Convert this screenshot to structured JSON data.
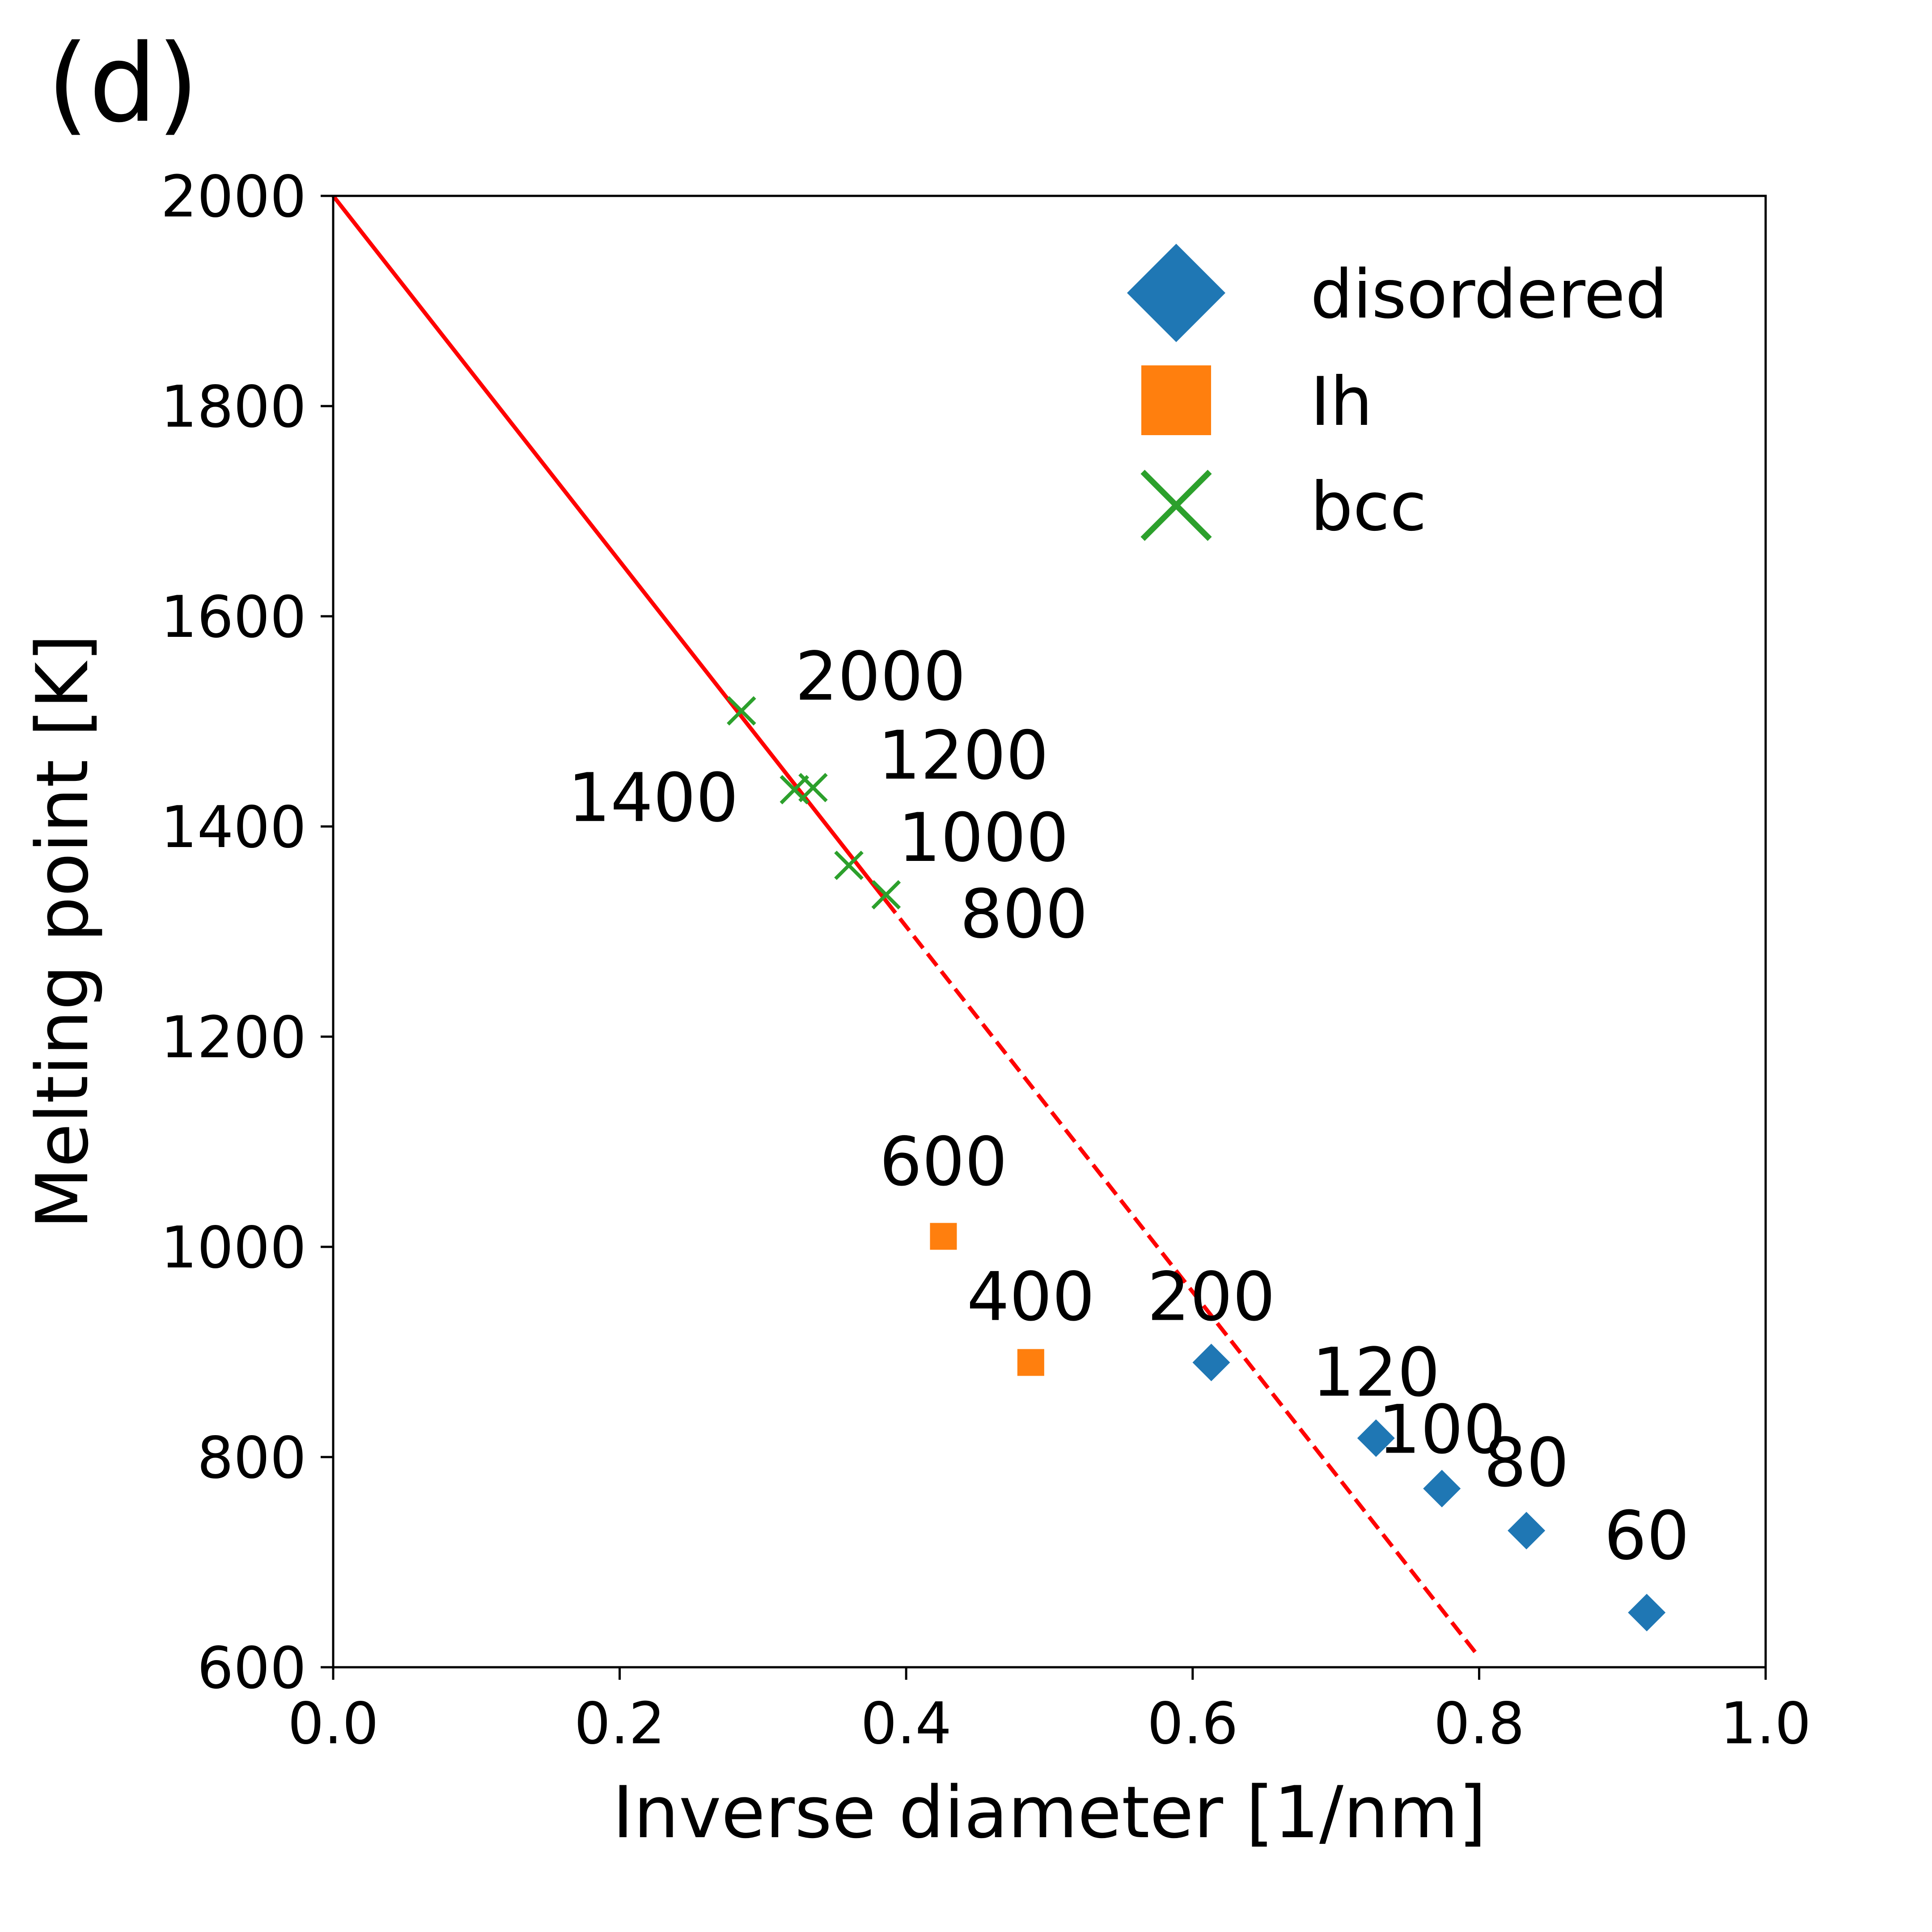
{
  "panel_label": "(d)",
  "colors": {
    "disordered": "#1f77b4",
    "Ih": "#ff7f0e",
    "bcc": "#2ca02c",
    "fit": "#ff0000"
  },
  "chart_data": {
    "type": "scatter",
    "title": "",
    "xlabel": "Inverse diameter [1/nm]",
    "ylabel": "Melting point [K]",
    "xlim": [
      0.0,
      1.0
    ],
    "ylim": [
      600,
      2000
    ],
    "xticks": [
      "0.0",
      "0.2",
      "0.4",
      "0.6",
      "0.8",
      "1.0"
    ],
    "yticks": [
      "600",
      "800",
      "1000",
      "1200",
      "1400",
      "1600",
      "1800",
      "2000"
    ],
    "grid": false,
    "legend_position": "top-right",
    "series": [
      {
        "name": "disordered",
        "marker": "diamond",
        "points": [
          {
            "x": 0.613,
            "y": 890,
            "label": "200"
          },
          {
            "x": 0.728,
            "y": 818,
            "label": "120"
          },
          {
            "x": 0.774,
            "y": 770,
            "label": "100"
          },
          {
            "x": 0.833,
            "y": 730,
            "label": "80"
          },
          {
            "x": 0.917,
            "y": 652,
            "label": "60"
          }
        ]
      },
      {
        "name": "Ih",
        "marker": "square",
        "points": [
          {
            "x": 0.426,
            "y": 1010,
            "label": "600"
          },
          {
            "x": 0.487,
            "y": 890,
            "label": "400"
          }
        ]
      },
      {
        "name": "bcc",
        "marker": "x",
        "points": [
          {
            "x": 0.285,
            "y": 1510,
            "label": "2000"
          },
          {
            "x": 0.335,
            "y": 1437,
            "label": "1200"
          },
          {
            "x": 0.322,
            "y": 1435,
            "label": "1400"
          },
          {
            "x": 0.36,
            "y": 1363,
            "label": "1000"
          },
          {
            "x": 0.386,
            "y": 1335,
            "label": "800"
          }
        ]
      }
    ],
    "fit_line": {
      "intercept": 2000,
      "slope": -1738,
      "solid_x": [
        0.0,
        0.386
      ],
      "dashed_x": [
        0.386,
        0.8
      ]
    }
  }
}
